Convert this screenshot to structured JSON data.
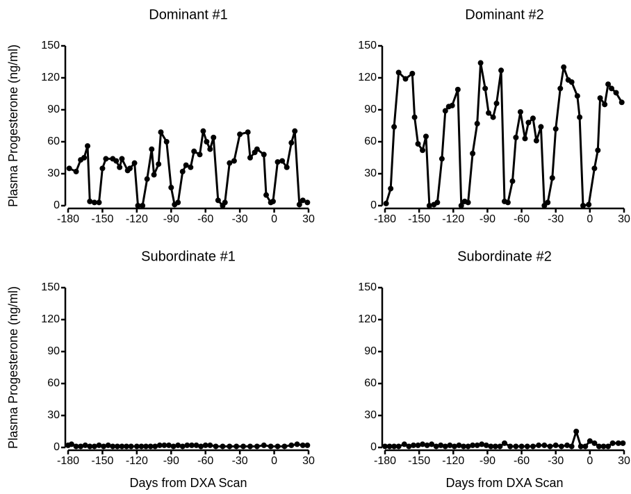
{
  "chart_data": [
    {
      "type": "line",
      "title": "Dominant #1",
      "ylabel": "Plasma Progesterone (ng/ml)",
      "color": "#000000",
      "x": [
        -179,
        -173,
        -169,
        -166,
        -163,
        -161,
        -157,
        -153,
        -150,
        -147,
        -141,
        -138,
        -135,
        -133,
        -128,
        -126,
        -122,
        -119,
        -115,
        -111,
        -107,
        -105,
        -101,
        -99,
        -94,
        -90,
        -87,
        -84,
        -80,
        -77,
        -73,
        -70,
        -65,
        -62,
        -59,
        -56,
        -53,
        -49,
        -45,
        -43,
        -39,
        -35,
        -30,
        -23,
        -21,
        -17,
        -15,
        -9,
        -7,
        -3,
        -1,
        3,
        7,
        11,
        15,
        18,
        22,
        25,
        29
      ],
      "values": [
        35,
        32,
        43,
        45,
        56,
        4,
        3,
        3,
        35,
        44,
        44,
        42,
        36,
        44,
        33,
        35,
        40,
        0,
        0,
        25,
        53,
        29,
        39,
        69,
        60,
        17,
        1,
        3,
        32,
        38,
        36,
        51,
        48,
        70,
        60,
        53,
        64,
        5,
        0,
        3,
        40,
        42,
        67,
        69,
        45,
        50,
        53,
        48,
        10,
        3,
        4,
        41,
        42,
        36,
        59,
        70,
        1,
        5,
        3
      ],
      "xlim": [
        -180,
        30
      ],
      "ylim": [
        0,
        150
      ],
      "xticks": [
        -180,
        -150,
        -120,
        -90,
        -60,
        -30,
        0,
        30
      ],
      "yticks": [
        0,
        30,
        60,
        90,
        120,
        150
      ]
    },
    {
      "type": "line",
      "title": "Dominant #2",
      "color": "#000000",
      "x": [
        -179,
        -175,
        -172,
        -168,
        -162,
        -156,
        -154,
        -151,
        -147,
        -144,
        -141,
        -137,
        -134,
        -130,
        -127,
        -124,
        -121,
        -116,
        -113,
        -110,
        -107,
        -103,
        -99,
        -96,
        -92,
        -89,
        -85,
        -82,
        -78,
        -75,
        -72,
        -68,
        -65,
        -61,
        -57,
        -54,
        -50,
        -47,
        -43,
        -40,
        -37,
        -33,
        -30,
        -26,
        -23,
        -19,
        -16,
        -11,
        -9,
        -6,
        -1,
        4,
        7,
        9,
        13,
        16,
        19,
        23,
        28
      ],
      "values": [
        2,
        16,
        74,
        125,
        119,
        124,
        83,
        58,
        52,
        65,
        0,
        1,
        3,
        44,
        89,
        93,
        94,
        109,
        0,
        4,
        3,
        49,
        77,
        134,
        110,
        87,
        83,
        96,
        127,
        4,
        3,
        23,
        64,
        88,
        63,
        78,
        82,
        61,
        74,
        0,
        3,
        26,
        72,
        110,
        130,
        118,
        116,
        103,
        83,
        0,
        1,
        35,
        52,
        101,
        95,
        114,
        110,
        106,
        97
      ],
      "xlim": [
        -180,
        30
      ],
      "ylim": [
        0,
        150
      ],
      "xticks": [
        -180,
        -150,
        -120,
        -90,
        -60,
        -30,
        0,
        30
      ],
      "yticks": [
        0,
        30,
        60,
        90,
        120,
        150
      ]
    },
    {
      "type": "line",
      "title": "Subordinate #1",
      "ylabel": "Plasma Progesterone (ng/ml)",
      "xlabel": "Days from DXA Scan",
      "color": "#000000",
      "x": [
        -180,
        -177,
        -173,
        -169,
        -165,
        -161,
        -157,
        -153,
        -149,
        -145,
        -141,
        -137,
        -133,
        -129,
        -125,
        -120,
        -116,
        -112,
        -108,
        -104,
        -100,
        -96,
        -92,
        -88,
        -84,
        -80,
        -76,
        -72,
        -68,
        -64,
        -60,
        -56,
        -51,
        -45,
        -39,
        -33,
        -27,
        -21,
        -15,
        -9,
        -3,
        3,
        9,
        15,
        20,
        25,
        29
      ],
      "values": [
        2,
        3,
        1,
        1,
        2,
        1,
        1,
        2,
        1,
        2,
        1,
        1,
        1,
        1,
        1,
        1,
        1,
        1,
        1,
        1,
        2,
        2,
        2,
        1,
        2,
        1,
        2,
        2,
        2,
        1,
        2,
        2,
        1,
        1,
        1,
        1,
        1,
        1,
        1,
        2,
        1,
        1,
        1,
        2,
        3,
        2,
        2
      ],
      "xlim": [
        -180,
        30
      ],
      "ylim": [
        0,
        150
      ],
      "xticks": [
        -180,
        -150,
        -120,
        -90,
        -60,
        -30,
        0,
        30
      ],
      "yticks": [
        0,
        30,
        60,
        90,
        120,
        150
      ]
    },
    {
      "type": "line",
      "title": "Subordinate #2",
      "xlabel": "Days from DXA Scan",
      "color": "#000000",
      "x": [
        -180,
        -176,
        -172,
        -168,
        -163,
        -159,
        -155,
        -151,
        -147,
        -143,
        -139,
        -135,
        -131,
        -127,
        -123,
        -119,
        -115,
        -111,
        -107,
        -103,
        -99,
        -95,
        -91,
        -87,
        -83,
        -79,
        -75,
        -70,
        -65,
        -60,
        -55,
        -50,
        -45,
        -40,
        -35,
        -30,
        -25,
        -20,
        -16,
        -12,
        -8,
        -4,
        0,
        4,
        8,
        12,
        16,
        20,
        25,
        29
      ],
      "values": [
        1,
        1,
        1,
        1,
        3,
        1,
        2,
        2,
        3,
        2,
        3,
        1,
        2,
        1,
        2,
        1,
        2,
        1,
        1,
        2,
        2,
        3,
        2,
        1,
        1,
        1,
        4,
        1,
        1,
        1,
        1,
        1,
        2,
        2,
        1,
        2,
        1,
        2,
        1,
        15,
        1,
        1,
        6,
        4,
        1,
        1,
        1,
        4,
        4,
        4
      ],
      "xlim": [
        -180,
        30
      ],
      "ylim": [
        0,
        150
      ],
      "xticks": [
        -180,
        -150,
        -120,
        -90,
        -60,
        -30,
        0,
        30
      ],
      "yticks": [
        0,
        30,
        60,
        90,
        120,
        150
      ]
    }
  ]
}
